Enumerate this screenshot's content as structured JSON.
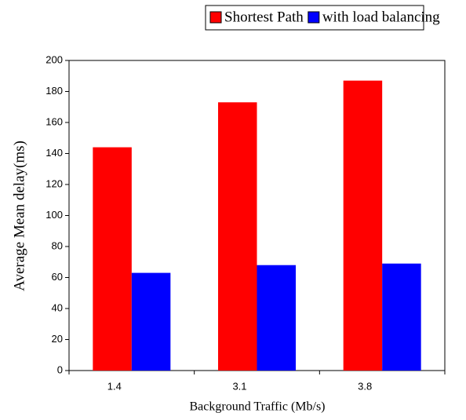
{
  "chart_data": {
    "type": "bar",
    "categories": [
      "1.4",
      "3.1",
      "3.8"
    ],
    "series": [
      {
        "name": "Shortest Path",
        "color": "#ff0000",
        "values": [
          144,
          173,
          187
        ]
      },
      {
        "name": "with load balancing",
        "color": "#0000ff",
        "values": [
          63,
          68,
          69
        ]
      }
    ],
    "xlabel": "Background Traffic (Mb/s)",
    "ylabel": "Average Mean delay(ms)",
    "ylim": [
      0,
      200
    ],
    "yticks": [
      0,
      20,
      40,
      60,
      80,
      100,
      120,
      140,
      160,
      180,
      200
    ],
    "grid": false,
    "legend": "top"
  }
}
